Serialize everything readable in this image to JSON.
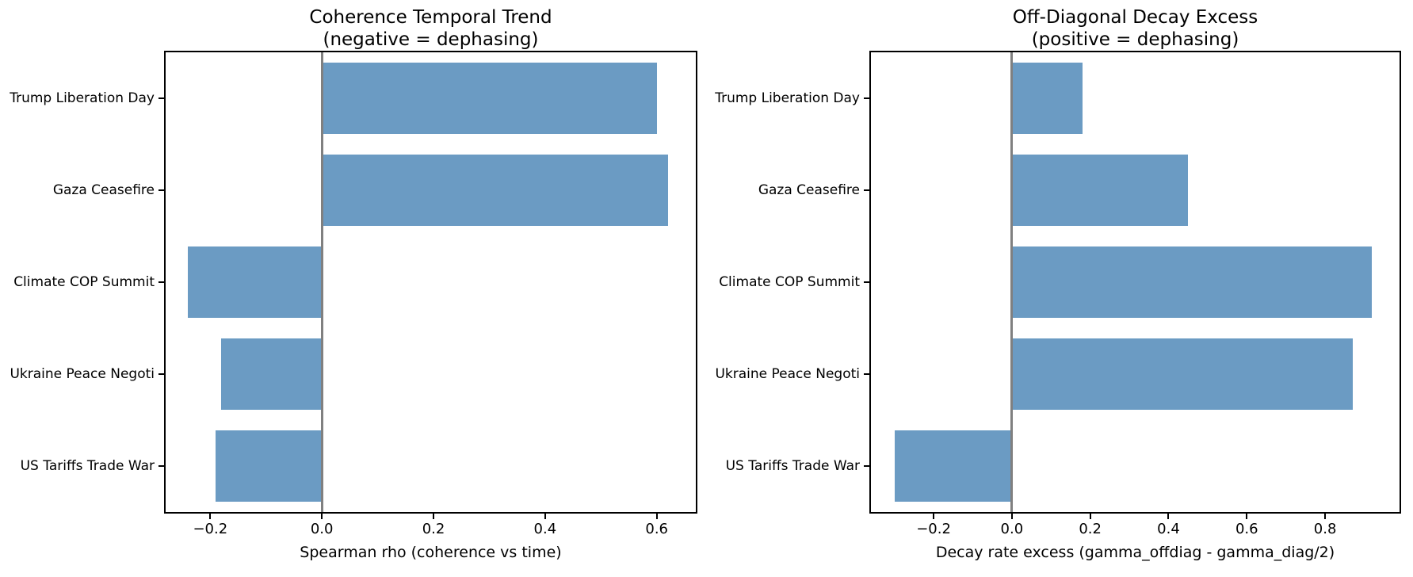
{
  "figure": {
    "background": "#ffffff",
    "spine_color": "#000000",
    "text_color": "#000000"
  },
  "chart_data": [
    {
      "type": "bar",
      "orientation": "horizontal",
      "title": "Coherence Temporal Trend",
      "subtitle": "(negative = dephasing)",
      "xlabel": "Spearman rho (coherence vs time)",
      "categories": [
        "Trump Liberation Day",
        "Gaza Ceasefire",
        "Climate COP Summit",
        "Ukraine Peace Negoti",
        "US Tariffs Trade War"
      ],
      "values": [
        0.6,
        0.62,
        -0.24,
        -0.18,
        -0.19
      ],
      "xlim": [
        -0.28,
        0.67
      ],
      "xticks": [
        -0.2,
        0.0,
        0.2,
        0.4,
        0.6
      ],
      "xtick_labels": [
        "−0.2",
        "0.0",
        "0.2",
        "0.4",
        "0.6"
      ],
      "grid": "off",
      "legend": "none",
      "bar_color": "#6B9BC3",
      "zero_line_color": "#808080"
    },
    {
      "type": "bar",
      "orientation": "horizontal",
      "title": "Off-Diagonal Decay Excess",
      "subtitle": "(positive = dephasing)",
      "xlabel": "Decay rate excess (gamma_offdiag - gamma_diag/2)",
      "categories": [
        "Trump Liberation Day",
        "Gaza Ceasefire",
        "Climate COP Summit",
        "Ukraine Peace Negoti",
        "US Tariffs Trade War"
      ],
      "values": [
        0.18,
        0.45,
        0.92,
        0.87,
        -0.3
      ],
      "xlim": [
        -0.36,
        0.99
      ],
      "xticks": [
        -0.2,
        0.0,
        0.2,
        0.4,
        0.6,
        0.8
      ],
      "xtick_labels": [
        "−0.2",
        "0.0",
        "0.2",
        "0.4",
        "0.6",
        "0.8"
      ],
      "grid": "off",
      "legend": "none",
      "bar_color": "#6B9BC3",
      "zero_line_color": "#808080"
    }
  ]
}
